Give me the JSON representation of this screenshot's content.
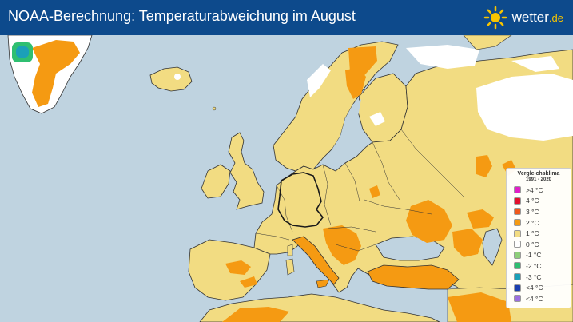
{
  "header": {
    "title": "NOAA-Berechnung: Temperaturabweichung im August",
    "brand_name": "wetter",
    "brand_tld": ".de"
  },
  "legend": {
    "title": "Vergleichsklima",
    "subtitle": "1991 - 2020",
    "items": [
      {
        "label": ">4 °C",
        "color": "#e01fc8"
      },
      {
        "label": "4 °C",
        "color": "#e3102c"
      },
      {
        "label": "3 °C",
        "color": "#f0581b"
      },
      {
        "label": "2 °C",
        "color": "#f59a12"
      },
      {
        "label": "1 °C",
        "color": "#f2dc82"
      },
      {
        "label": "0 °C",
        "color": "#ffffff"
      },
      {
        "label": "-1 °C",
        "color": "#8ecf7a"
      },
      {
        "label": "-2 °C",
        "color": "#2fbf71"
      },
      {
        "label": "-3 °C",
        "color": "#1ba0b8"
      },
      {
        "label": "<4 °C",
        "color": "#1b3fb0"
      },
      {
        "label": "<4 °C",
        "color": "#9b6fe0"
      }
    ]
  },
  "colors": {
    "sea": "#bfd3e0",
    "anomaly_plus_1": "#f2dc82",
    "anomaly_plus_2": "#f59a12",
    "anomaly_zero": "#ffffff",
    "header_background": "#0d4a8c",
    "brand_accent": "#f7c400"
  }
}
